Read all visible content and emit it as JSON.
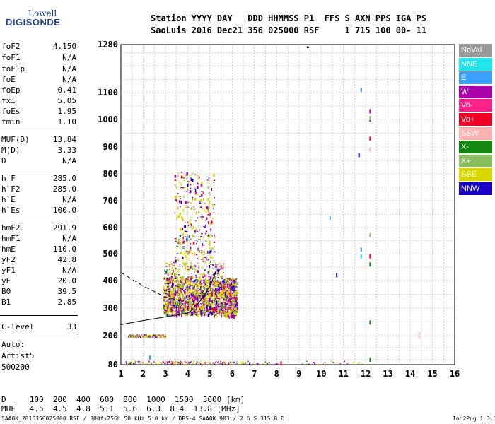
{
  "logo": {
    "top": "Lowell",
    "bottom": "DIGISONDE"
  },
  "header": {
    "line1": "Station YYYY DAY   DDD HHMMSS P1  FFS S AXN PPS IGA PS",
    "line2": "SaoLuis 2016 Dec21 356 025000 RSF     1 715 100 00- 11"
  },
  "params": [
    {
      "name": "foF2",
      "value": "4.150"
    },
    {
      "name": "foF1",
      "value": "N/A"
    },
    {
      "name": "foF1p",
      "value": "N/A"
    },
    {
      "name": "foE",
      "value": "N/A"
    },
    {
      "name": "foEp",
      "value": "0.41"
    },
    {
      "name": "fxI",
      "value": "5.05"
    },
    {
      "name": "foEs",
      "value": "1.95"
    },
    {
      "name": "fmin",
      "value": "1.10"
    },
    {
      "name": "MUF(D)",
      "value": "13.84"
    },
    {
      "name": "M(D)",
      "value": "3.33"
    },
    {
      "name": "D",
      "value": "N/A"
    },
    {
      "name": "h`F",
      "value": "285.0"
    },
    {
      "name": "h`F2",
      "value": "285.0"
    },
    {
      "name": "h`E",
      "value": "N/A"
    },
    {
      "name": "h`Es",
      "value": "100.0"
    },
    {
      "name": "hmF2",
      "value": "291.9"
    },
    {
      "name": "hmF1",
      "value": "N/A"
    },
    {
      "name": "hmE",
      "value": "110.0"
    },
    {
      "name": "yF2",
      "value": "42.8"
    },
    {
      "name": "yF1",
      "value": "N/A"
    },
    {
      "name": "yE",
      "value": "20.0"
    },
    {
      "name": "B0",
      "value": "39.5"
    },
    {
      "name": "B1",
      "value": "2.85"
    },
    {
      "name": "C-level",
      "value": "33"
    }
  ],
  "auto": {
    "line1": "Auto:",
    "line2": "Artist5",
    "line3": "500200"
  },
  "legend": [
    {
      "label": "NoVal",
      "color": "#999999"
    },
    {
      "label": "NNE",
      "color": "#22e6ee"
    },
    {
      "label": "E",
      "color": "#3aa0ff"
    },
    {
      "label": "W",
      "color": "#aa00aa"
    },
    {
      "label": "Vo-",
      "color": "#ff2288"
    },
    {
      "label": "Vo+",
      "color": "#ee0022"
    },
    {
      "label": "SSW",
      "color": "#ffb0b0"
    },
    {
      "label": "X-",
      "color": "#118811"
    },
    {
      "label": "X+",
      "color": "#88c060"
    },
    {
      "label": "SSE",
      "color": "#d8d800"
    },
    {
      "label": "NNW",
      "color": "#1800c8"
    }
  ],
  "footer": {
    "line1": "D     100  200  400  600  800  1000  1500  3000 [km]",
    "line2": "MUF   4.5  4.5  4.8  5.1  5.6  6.3  8.4  13.8 [MHz]",
    "file": "SAA0K_2016356025000.RSF / 300fx256h 50 kHz 5.0 km / DPS-4 SAA0K 903 / 2.6 S 315.8 E",
    "version": "Ion2Png 1.3.17"
  },
  "chart_data": {
    "type": "scatter",
    "title": "",
    "xlabel": "",
    "ylabel": "",
    "xlim": [
      1,
      16
    ],
    "ylim": [
      80,
      1280
    ],
    "x_ticks": [
      1,
      2,
      3,
      4,
      5,
      6,
      7,
      8,
      9,
      10,
      11,
      12,
      13,
      14,
      15,
      16
    ],
    "y_ticks": [
      80,
      200,
      300,
      400,
      500,
      600,
      700,
      800,
      900,
      1000,
      1100,
      1280
    ],
    "grid": true,
    "y_scale": "stretched-low (80-300 km spans more space)",
    "series": [
      {
        "name": "SSE",
        "color": "#d8d800",
        "points": [
          [
            3.0,
            305
          ],
          [
            3.4,
            320
          ],
          [
            3.8,
            345
          ],
          [
            4.2,
            360
          ],
          [
            4.5,
            380
          ],
          [
            4.8,
            400
          ],
          [
            3.6,
            550
          ],
          [
            4.1,
            620
          ],
          [
            4.6,
            700
          ],
          [
            5.0,
            540
          ],
          [
            3.9,
            450
          ],
          [
            4.3,
            500
          ],
          [
            3.2,
            295
          ],
          [
            4.9,
            320
          ]
        ]
      },
      {
        "name": "W",
        "color": "#aa00aa",
        "points": [
          [
            3.5,
            290
          ],
          [
            4.0,
            300
          ],
          [
            4.5,
            310
          ],
          [
            5.0,
            330
          ],
          [
            5.4,
            360
          ],
          [
            5.8,
            380
          ],
          [
            6.1,
            395
          ],
          [
            4.7,
            340
          ],
          [
            5.2,
            420
          ],
          [
            5.5,
            450
          ],
          [
            5.9,
            330
          ],
          [
            12.2,
            1030
          ],
          [
            12.2,
            1000
          ]
        ]
      },
      {
        "name": "NNW",
        "color": "#1800c8",
        "points": [
          [
            4.2,
            280
          ],
          [
            4.6,
            285
          ],
          [
            5.0,
            300
          ],
          [
            5.3,
            320
          ],
          [
            5.7,
            350
          ],
          [
            6.0,
            370
          ],
          [
            11.7,
            870
          ],
          [
            10.7,
            420
          ]
        ]
      },
      {
        "name": "Vo+",
        "color": "#ee0022",
        "points": [
          [
            4.4,
            310
          ],
          [
            5.1,
            350
          ],
          [
            5.6,
            370
          ],
          [
            8.2,
            85
          ],
          [
            12.2,
            490
          ],
          [
            12.2,
            930
          ]
        ]
      },
      {
        "name": "X+",
        "color": "#88c060",
        "points": [
          [
            3.3,
            330
          ],
          [
            3.8,
            380
          ],
          [
            12.2,
            1005
          ],
          [
            12.2,
            570
          ]
        ]
      },
      {
        "name": "X-",
        "color": "#118811",
        "points": [
          [
            12.2,
            248
          ],
          [
            12.2,
            460
          ],
          [
            12.2,
            100
          ]
        ]
      },
      {
        "name": "E",
        "color": "#3aa0ff",
        "points": [
          [
            11.8,
            1110
          ],
          [
            10.4,
            635
          ],
          [
            11.8,
            515
          ],
          [
            2.3,
            110
          ]
        ]
      },
      {
        "name": "NNE",
        "color": "#22e6ee",
        "points": [
          [
            11.8,
            490
          ],
          [
            4.0,
            560
          ]
        ]
      },
      {
        "name": "SSW",
        "color": "#ffb0b0",
        "points": [
          [
            14.4,
            205
          ],
          [
            14.4,
            195
          ],
          [
            12.2,
            890
          ]
        ]
      }
    ],
    "bands": [
      {
        "name": "Es-trace",
        "y": 200,
        "xrange": [
          1.3,
          3.0
        ]
      },
      {
        "name": "E-trace",
        "y": 90,
        "xrange": [
          1.2,
          12.5
        ]
      }
    ],
    "profile_lines": [
      {
        "style": "solid",
        "points": [
          [
            1.0,
            240
          ],
          [
            2.0,
            255
          ],
          [
            3.0,
            268
          ],
          [
            4.0,
            282
          ],
          [
            4.15,
            290
          ]
        ]
      },
      {
        "style": "solid",
        "points": [
          [
            4.15,
            290
          ],
          [
            4.6,
            330
          ],
          [
            5.0,
            380
          ],
          [
            5.3,
            440
          ]
        ]
      },
      {
        "style": "dashed",
        "points": [
          [
            1.0,
            430
          ],
          [
            2.0,
            380
          ],
          [
            3.0,
            340
          ],
          [
            4.0,
            320
          ],
          [
            4.15,
            315
          ]
        ]
      }
    ]
  }
}
